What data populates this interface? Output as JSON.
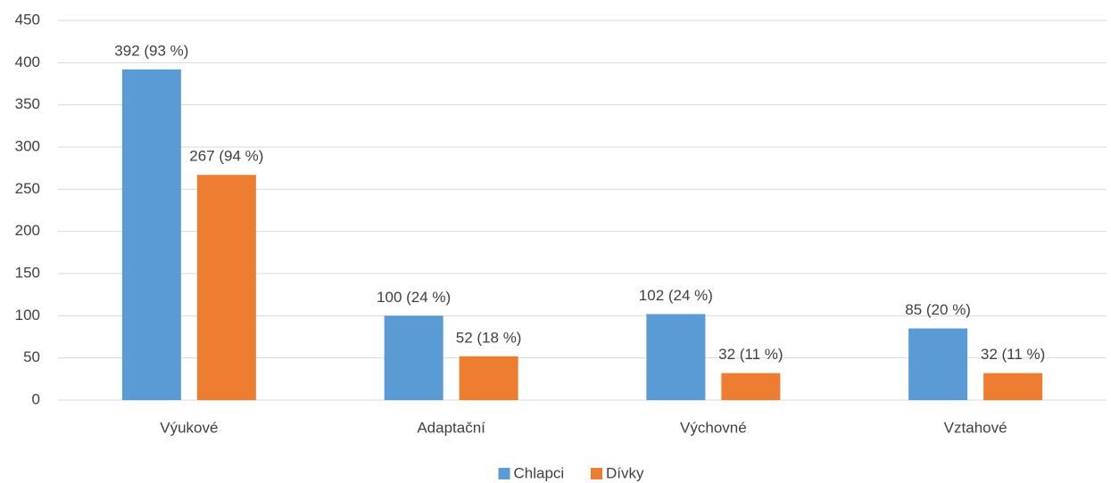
{
  "chart_data": {
    "type": "bar",
    "categories": [
      "Výukové",
      "Adaptační",
      "Výchovné",
      "Vztahové"
    ],
    "series": [
      {
        "name": "Chlapci",
        "color": "#5b9bd5",
        "values": [
          392,
          100,
          102,
          85
        ],
        "value_labels": [
          "392 (93 %)",
          "100 (24 %)",
          "102 (24 %)",
          "85 (20 %)"
        ]
      },
      {
        "name": "Dívky",
        "color": "#ed7d31",
        "values": [
          267,
          52,
          32,
          32
        ],
        "value_labels": [
          "267 (94 %)",
          "52 (18 %)",
          "32 (11 %)",
          "32 (11 %)"
        ]
      }
    ],
    "ylim": [
      0,
      450
    ],
    "yticks": [
      0,
      50,
      100,
      150,
      200,
      250,
      300,
      350,
      400,
      450
    ],
    "grid": true,
    "legend": "bottom"
  }
}
